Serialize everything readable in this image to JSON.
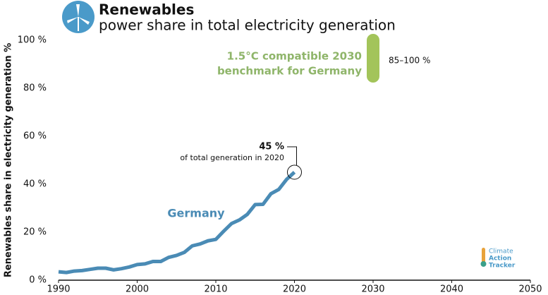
{
  "chart_data": {
    "type": "line",
    "title": "Renewables",
    "subtitle": "power share in total electricity generation",
    "y_label": "Renewables share in electricity generation %",
    "x": [
      1990,
      1991,
      1992,
      1993,
      1994,
      1995,
      1996,
      1997,
      1998,
      1999,
      2000,
      2001,
      2002,
      2003,
      2004,
      2005,
      2006,
      2007,
      2008,
      2009,
      2010,
      2011,
      2012,
      2013,
      2014,
      2015,
      2016,
      2017,
      2018,
      2019,
      2020
    ],
    "series": [
      {
        "name": "Germany",
        "color": "#4a8bb5",
        "values": [
          3.5,
          3.2,
          3.8,
          4.0,
          4.5,
          5.0,
          5.0,
          4.3,
          4.8,
          5.5,
          6.5,
          6.8,
          7.8,
          7.8,
          9.5,
          10.3,
          11.6,
          14.3,
          15.1,
          16.4,
          17.0,
          20.4,
          23.6,
          25.1,
          27.4,
          31.5,
          31.6,
          36.0,
          37.8,
          42.0,
          45.0
        ]
      }
    ],
    "xlim": [
      1990,
      2050
    ],
    "xticks": [
      1990,
      2000,
      2010,
      2020,
      2030,
      2040,
      2050
    ],
    "ylim": [
      0,
      100
    ],
    "yticks": [
      {
        "value": 0,
        "label": "0 %"
      },
      {
        "value": 20,
        "label": "20 %"
      },
      {
        "value": 40,
        "label": "40 %"
      },
      {
        "value": 60,
        "label": "60 %"
      },
      {
        "value": 80,
        "label": "80 %"
      },
      {
        "value": 100,
        "label": "100 %"
      }
    ],
    "grid": false,
    "highlight": {
      "x": 2020,
      "y": 45,
      "label": "45 %",
      "text": "of total generation in 2020"
    },
    "benchmark": {
      "x": 2030,
      "low": 85,
      "high": 100,
      "color": "#a3c45a",
      "label_lines": [
        "1.5°C compatible 2030",
        "benchmark for Germany"
      ],
      "value_label": "85–100 %"
    },
    "logo": [
      "Climate",
      "Action",
      "Tracker"
    ]
  }
}
